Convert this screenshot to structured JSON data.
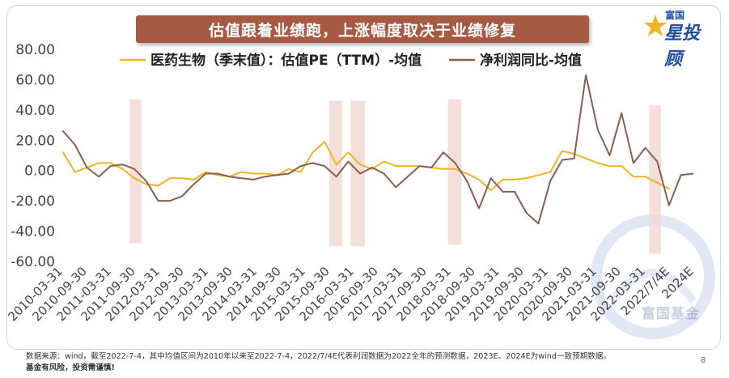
{
  "title": "估值跟着业绩跑，上涨幅度取决于业绩修复",
  "logo": {
    "top_text": "富国",
    "main_text": "星投顾",
    "color": "#1f4e9a"
  },
  "watermark_text": "富国基金",
  "footnote": {
    "source": "数据来源：wind，截至2022-7-4，其中均值区间为2010年以来至2022-7-4，2022/7/4E代表利润数据为2022全年的预测数据，2023E、2024E为wind一致预期数据。",
    "risk": "基金有风险，投资需谨慎!"
  },
  "page_number": "8",
  "colors": {
    "banner": "#a65a44",
    "pe_line": "#f0b323",
    "profit_line": "#8b5e4f",
    "highlight": "#f2d9d5"
  },
  "chart_data": {
    "type": "line",
    "xlabel": "",
    "ylabel": "",
    "ylim": [
      -60,
      80
    ],
    "yticks": [
      80,
      60,
      40,
      20,
      0,
      -20,
      -40,
      -60
    ],
    "ytick_labels": [
      "80.00",
      "60.00",
      "40.00",
      "20.00",
      "0.00",
      "-20.00",
      "-40.00",
      "-60.00"
    ],
    "grid": false,
    "legend_position": "top",
    "x_tick_labels": [
      "2010-03-31",
      "2010-09-30",
      "2011-03-31",
      "2011-09-30",
      "2012-03-31",
      "2012-09-30",
      "2013-03-31",
      "2013-09-30",
      "2014-03-31",
      "2014-09-30",
      "2015-03-31",
      "2015-09-30",
      "2016-03-31",
      "2016-09-30",
      "2017-03-31",
      "2017-09-30",
      "2018-03-31",
      "2018-09-30",
      "2019-03-31",
      "2019-09-30",
      "2020-03-31",
      "2020-09-30",
      "2021-03-31",
      "2021-09-30",
      "2022-03-31",
      "2022/7/4E",
      "2024E"
    ],
    "highlight_bands": [
      {
        "x_from": 2011.4,
        "x_to": 2011.65,
        "y_from": -48,
        "y_to": 47
      },
      {
        "x_from": 2015.6,
        "x_to": 2015.87,
        "y_from": -50,
        "y_to": 46
      },
      {
        "x_from": 2016.05,
        "x_to": 2016.35,
        "y_from": -50,
        "y_to": 46
      },
      {
        "x_from": 2018.1,
        "x_to": 2018.38,
        "y_from": -49,
        "y_to": 47
      },
      {
        "x_from": 2022.33,
        "x_to": 2022.58,
        "y_from": -55,
        "y_to": 43
      }
    ],
    "series": [
      {
        "name": "医药生物（季末值）：估值PE（TTM）-均值",
        "color": "#f0b323",
        "x": [
          2010.0,
          2010.25,
          2010.5,
          2010.75,
          2011.0,
          2011.25,
          2011.5,
          2011.75,
          2012.0,
          2012.25,
          2012.5,
          2012.75,
          2013.0,
          2013.25,
          2013.5,
          2013.75,
          2014.0,
          2014.25,
          2014.5,
          2014.75,
          2015.0,
          2015.25,
          2015.5,
          2015.75,
          2016.0,
          2016.25,
          2016.5,
          2016.75,
          2017.0,
          2017.25,
          2017.5,
          2017.75,
          2018.0,
          2018.25,
          2018.5,
          2018.75,
          2019.0,
          2019.25,
          2019.5,
          2019.75,
          2020.0,
          2020.25,
          2020.5,
          2020.75,
          2021.0,
          2021.25,
          2021.5,
          2021.75,
          2022.0,
          2022.25,
          2022.5,
          2022.75
        ],
        "y": [
          12,
          -1,
          2,
          5,
          5,
          1,
          -5,
          -9,
          -10,
          -5,
          -5,
          -6,
          -1,
          -3,
          -4,
          -1,
          -2,
          -2,
          -3,
          1,
          -1,
          12,
          19,
          4,
          12,
          4,
          1,
          6,
          3,
          3,
          3,
          2,
          1,
          1,
          -2,
          -6,
          -13,
          -6,
          -6,
          -5,
          -3,
          -1,
          13,
          11,
          8,
          5,
          3,
          3,
          -4,
          -4,
          -8,
          -12
        ]
      },
      {
        "name": "净利润同比-均值",
        "color": "#8b5e4f",
        "x": [
          2010.0,
          2010.25,
          2010.5,
          2010.75,
          2011.0,
          2011.25,
          2011.5,
          2011.75,
          2012.0,
          2012.25,
          2012.5,
          2012.75,
          2013.0,
          2013.25,
          2013.5,
          2013.75,
          2014.0,
          2014.25,
          2014.5,
          2014.75,
          2015.0,
          2015.25,
          2015.5,
          2015.75,
          2016.0,
          2016.25,
          2016.5,
          2016.75,
          2017.0,
          2017.25,
          2017.5,
          2017.75,
          2018.0,
          2018.25,
          2018.5,
          2018.75,
          2019.0,
          2019.25,
          2019.5,
          2019.75,
          2020.0,
          2020.25,
          2020.5,
          2020.75,
          2021.0,
          2021.25,
          2021.5,
          2021.75,
          2022.0,
          2022.25,
          2022.5,
          2022.75,
          2023.0,
          2023.25
        ],
        "y": [
          26,
          17,
          2,
          -4,
          3,
          4,
          1,
          -7,
          -20,
          -20,
          -17,
          -9,
          -2,
          -2,
          -4,
          -5,
          -6,
          -4,
          -3,
          -2,
          3,
          5,
          3,
          -4,
          6,
          -2,
          2,
          -2,
          -11,
          -4,
          3,
          2,
          12,
          5,
          -7,
          -25,
          -5,
          -14,
          -14,
          -28,
          -35,
          -7,
          7,
          8,
          63,
          27,
          10,
          38,
          5,
          15,
          6,
          -23,
          -3,
          -2
        ]
      }
    ]
  }
}
